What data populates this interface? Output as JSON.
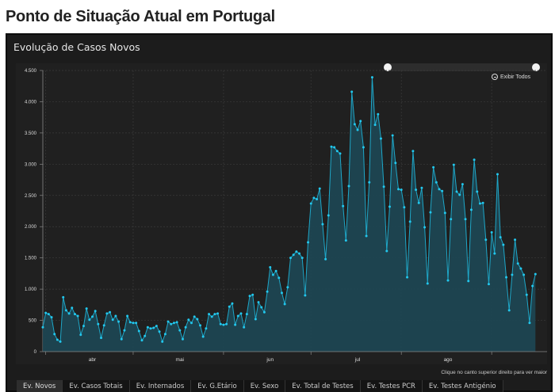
{
  "page_title": "Ponto de Situação Atual em Portugal",
  "panel_title": "Evolução de Casos Novos",
  "zoom_all_label": "Exibir Todos",
  "hint": "Clique no canto superior direito para ver maior",
  "tabs": [
    "Ev. Novos",
    "Ev. Casos Totais",
    "Ev. Internados",
    "Ev. G.Etário",
    "Ev. Sexo",
    "Ev. Total de Testes",
    "Ev. Testes PCR",
    "Ev. Testes Antigénio"
  ],
  "active_tab": 0,
  "colors": {
    "line": "#1ea7c8",
    "point": "#22c8ee",
    "area": "#1e4652",
    "grid": "#3a3a3a"
  },
  "chart_data": {
    "type": "area",
    "title": "Evolução de Casos Novos",
    "xlabel": "",
    "ylabel": "",
    "ylim": [
      0,
      4500
    ],
    "xlim": [
      0,
      173
    ],
    "y_ticks": [
      {
        "v": 0,
        "l": "0"
      },
      {
        "v": 500,
        "l": "500"
      },
      {
        "v": 1000,
        "l": "1.000"
      },
      {
        "v": 1500,
        "l": "1.500"
      },
      {
        "v": 2000,
        "l": "2.000"
      },
      {
        "v": 2500,
        "l": "2.500"
      },
      {
        "v": 3000,
        "l": "3.000"
      },
      {
        "v": 3500,
        "l": "3.500"
      },
      {
        "v": 4000,
        "l": "4.000"
      },
      {
        "v": 4500,
        "l": "4.500"
      }
    ],
    "x_tick_marks": [
      1,
      31,
      62,
      92,
      123,
      154
    ],
    "x_labels": [
      {
        "i": 17,
        "l": "abr"
      },
      {
        "i": 47,
        "l": "mai"
      },
      {
        "i": 78,
        "l": "jun"
      },
      {
        "i": 108,
        "l": "jul"
      },
      {
        "i": 139,
        "l": "ago"
      }
    ],
    "grid": true,
    "values": [
      390,
      620,
      600,
      550,
      280,
      190,
      160,
      870,
      660,
      610,
      700,
      600,
      570,
      270,
      410,
      690,
      510,
      560,
      650,
      440,
      220,
      420,
      610,
      630,
      510,
      570,
      480,
      200,
      340,
      570,
      470,
      460,
      460,
      330,
      180,
      250,
      390,
      370,
      380,
      410,
      320,
      160,
      280,
      480,
      440,
      460,
      470,
      340,
      200,
      390,
      510,
      460,
      560,
      520,
      420,
      240,
      370,
      600,
      560,
      600,
      610,
      440,
      430,
      440,
      720,
      770,
      430,
      570,
      610,
      390,
      600,
      890,
      910,
      520,
      790,
      710,
      630,
      960,
      1350,
      1230,
      1290,
      1180,
      940,
      760,
      1030,
      1500,
      1550,
      1600,
      1570,
      1500,
      900,
      1750,
      2370,
      2460,
      2440,
      2610,
      2040,
      1480,
      2180,
      3280,
      3270,
      3210,
      3170,
      2330,
      1780,
      2650,
      4160,
      3640,
      3550,
      3690,
      3270,
      1850,
      2710,
      4390,
      3630,
      3800,
      3410,
      2640,
      1610,
      2320,
      3460,
      3020,
      2600,
      2590,
      2310,
      1190,
      2080,
      3210,
      2590,
      2380,
      2620,
      1990,
      1090,
      2230,
      2950,
      2710,
      2600,
      2570,
      2220,
      1140,
      2120,
      2990,
      2560,
      2510,
      2680,
      2120,
      1130,
      2270,
      3070,
      2560,
      2370,
      2380,
      1790,
      1080,
      1910,
      1570,
      2840,
      1830,
      1710,
      1190,
      660,
      1230,
      1790,
      1410,
      1330,
      1230,
      910,
      460,
      1050,
      1240
    ]
  }
}
